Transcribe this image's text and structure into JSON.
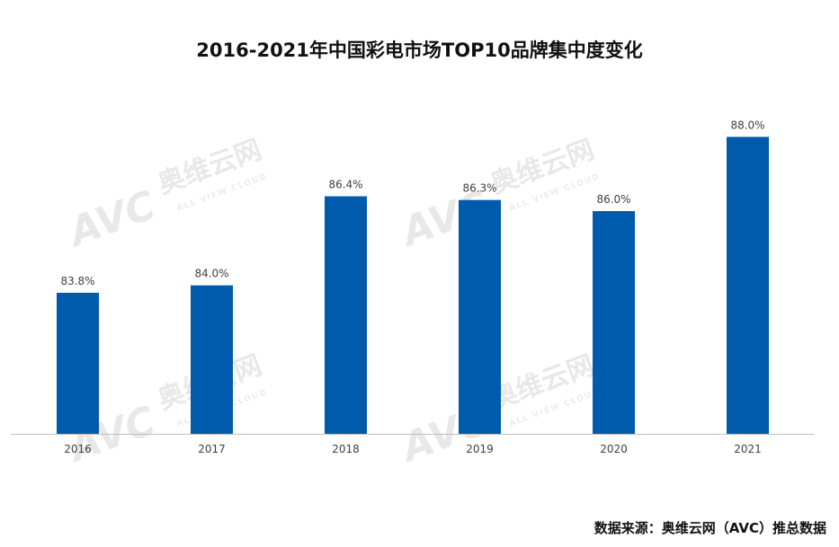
{
  "page": {
    "title": "2016-2021年中国彩电市场TOP10品牌集中度变化",
    "source": "数据来源：奥维云网（AVC）推总数据"
  },
  "watermark": {
    "logo": "AVC",
    "cn": "奥维云网",
    "en": "ALL VIEW CLOUD"
  },
  "colors": {
    "bar": "#005BAC",
    "axis": "#BFBFBF",
    "label": "#404040"
  },
  "chart_data": {
    "type": "bar",
    "title": "2016-2021年中国彩电市场TOP10品牌集中度变化",
    "xlabel": "",
    "ylabel": "",
    "categories": [
      "2016",
      "2017",
      "2018",
      "2019",
      "2020",
      "2021"
    ],
    "values": [
      83.8,
      84.0,
      86.4,
      86.3,
      86.0,
      88.0
    ],
    "data_labels": [
      "83.8%",
      "84.0%",
      "86.4%",
      "86.3%",
      "86.0%",
      "88.0%"
    ],
    "ylim": [
      80.0,
      88.3
    ],
    "grid": false,
    "legend": "none"
  }
}
